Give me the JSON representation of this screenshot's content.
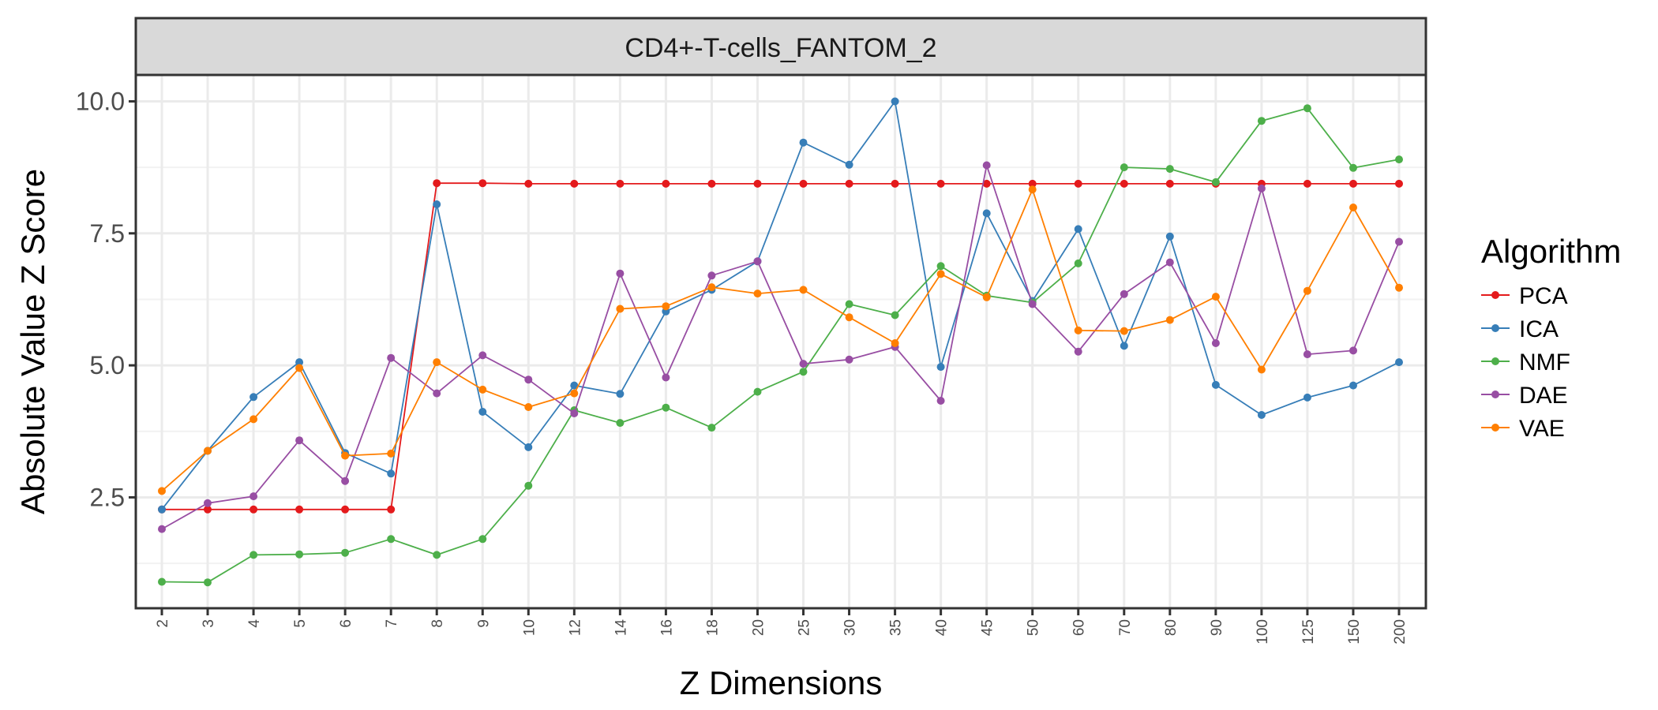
{
  "chart_data": {
    "type": "line",
    "facet_title": "CD4+-T-cells_FANTOM_2",
    "xlabel": "Z Dimensions",
    "ylabel": "Absolute Value Z Score",
    "categories": [
      "2",
      "3",
      "4",
      "5",
      "6",
      "7",
      "8",
      "9",
      "10",
      "12",
      "14",
      "16",
      "18",
      "20",
      "25",
      "30",
      "35",
      "40",
      "45",
      "50",
      "60",
      "70",
      "80",
      "90",
      "100",
      "125",
      "150",
      "200"
    ],
    "yticks": [
      "2.5",
      "5.0",
      "7.5",
      "10.0"
    ],
    "ylim": [
      0.4,
      10.5
    ],
    "grid": true,
    "legend": {
      "title": "Algorithm",
      "position": "right"
    },
    "series": [
      {
        "name": "PCA",
        "color": "#e41a1c",
        "values": [
          2.27,
          2.27,
          2.27,
          2.27,
          2.27,
          2.27,
          8.45,
          8.45,
          8.44,
          8.44,
          8.44,
          8.44,
          8.44,
          8.44,
          8.44,
          8.44,
          8.44,
          8.44,
          8.44,
          8.44,
          8.44,
          8.44,
          8.44,
          8.44,
          8.44,
          8.44,
          8.44,
          8.44
        ]
      },
      {
        "name": "ICA",
        "color": "#377eb8",
        "values": [
          2.27,
          3.38,
          4.4,
          5.06,
          3.34,
          2.95,
          8.05,
          4.12,
          3.45,
          4.62,
          4.46,
          6.02,
          6.43,
          6.97,
          9.22,
          8.8,
          10.0,
          4.97,
          7.88,
          6.22,
          7.58,
          5.37,
          7.44,
          4.63,
          4.06,
          4.39,
          4.62,
          5.06
        ]
      },
      {
        "name": "NMF",
        "color": "#4daf4a",
        "values": [
          0.9,
          0.89,
          1.41,
          1.42,
          1.45,
          1.71,
          1.41,
          1.71,
          2.72,
          4.15,
          3.91,
          4.2,
          3.82,
          4.5,
          4.88,
          6.16,
          5.95,
          6.88,
          6.32,
          6.19,
          6.93,
          8.75,
          8.72,
          8.47,
          9.63,
          9.87,
          8.74,
          8.9
        ]
      },
      {
        "name": "DAE",
        "color": "#984ea3",
        "values": [
          1.9,
          2.39,
          2.52,
          3.58,
          2.81,
          5.14,
          4.47,
          5.19,
          4.73,
          4.09,
          6.74,
          4.77,
          6.7,
          6.97,
          5.03,
          5.11,
          5.35,
          4.33,
          8.79,
          6.16,
          5.26,
          6.35,
          6.95,
          5.42,
          8.35,
          5.21,
          5.28,
          7.34
        ]
      },
      {
        "name": "VAE",
        "color": "#ff7f00",
        "values": [
          2.62,
          3.38,
          3.98,
          4.95,
          3.29,
          3.33,
          5.06,
          4.54,
          4.21,
          4.47,
          6.07,
          6.12,
          6.48,
          6.36,
          6.43,
          5.91,
          5.42,
          6.73,
          6.29,
          8.33,
          5.66,
          5.65,
          5.86,
          6.3,
          4.92,
          6.41,
          7.99,
          6.47
        ]
      }
    ]
  }
}
